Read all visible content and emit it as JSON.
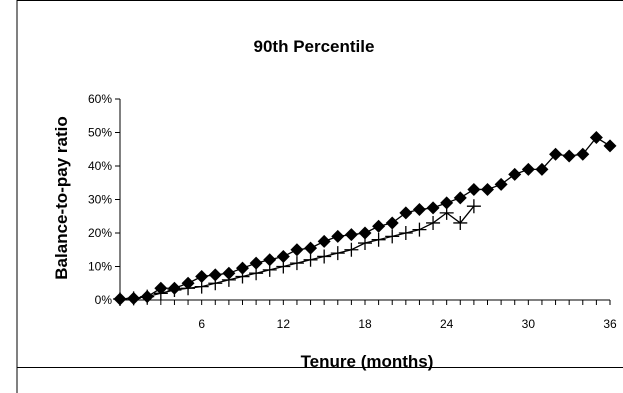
{
  "chart_data": {
    "type": "line",
    "title": "90th Percentile",
    "xlabel": "Tenure (months)",
    "ylabel": "Balance-to-pay ratio",
    "xlim": [
      0,
      36
    ],
    "ylim": [
      0,
      0.6
    ],
    "x_ticks": [
      6,
      12,
      18,
      24,
      30,
      36
    ],
    "x_tick_labels": [
      "6",
      "12",
      "18",
      "24",
      "30",
      "36"
    ],
    "y_ticks": [
      0,
      0.1,
      0.2,
      0.3,
      0.4,
      0.5,
      0.6
    ],
    "y_tick_labels": [
      "0%",
      "10%",
      "20%",
      "30%",
      "40%",
      "50%",
      "60%"
    ],
    "grid": false,
    "legend": "none",
    "series": [
      {
        "marker": "diamond",
        "color": "#000000",
        "x": [
          0,
          1,
          2,
          3,
          4,
          5,
          6,
          7,
          8,
          9,
          10,
          11,
          12,
          13,
          14,
          15,
          16,
          17,
          18,
          19,
          20,
          21,
          22,
          23,
          24,
          25,
          26,
          27,
          28,
          29,
          30,
          31,
          32,
          33,
          34,
          35,
          36
        ],
        "y": [
          0.003,
          0.005,
          0.01,
          0.035,
          0.035,
          0.05,
          0.07,
          0.075,
          0.08,
          0.095,
          0.11,
          0.12,
          0.13,
          0.15,
          0.155,
          0.175,
          0.19,
          0.195,
          0.2,
          0.22,
          0.23,
          0.26,
          0.27,
          0.275,
          0.29,
          0.305,
          0.33,
          0.33,
          0.345,
          0.375,
          0.39,
          0.39,
          0.435,
          0.43,
          0.435,
          0.485,
          0.46
        ]
      },
      {
        "marker": "plus",
        "color": "#000000",
        "x": [
          0,
          1,
          2,
          3,
          4,
          5,
          6,
          7,
          8,
          9,
          10,
          11,
          12,
          13,
          14,
          15,
          16,
          17,
          18,
          19,
          20,
          21,
          22,
          23,
          24,
          25,
          26
        ],
        "y": [
          0.003,
          0.005,
          0.01,
          0.02,
          0.03,
          0.035,
          0.04,
          0.05,
          0.06,
          0.07,
          0.08,
          0.09,
          0.1,
          0.11,
          0.12,
          0.13,
          0.14,
          0.15,
          0.17,
          0.18,
          0.19,
          0.2,
          0.21,
          0.23,
          0.26,
          0.23,
          0.28
        ]
      }
    ]
  }
}
